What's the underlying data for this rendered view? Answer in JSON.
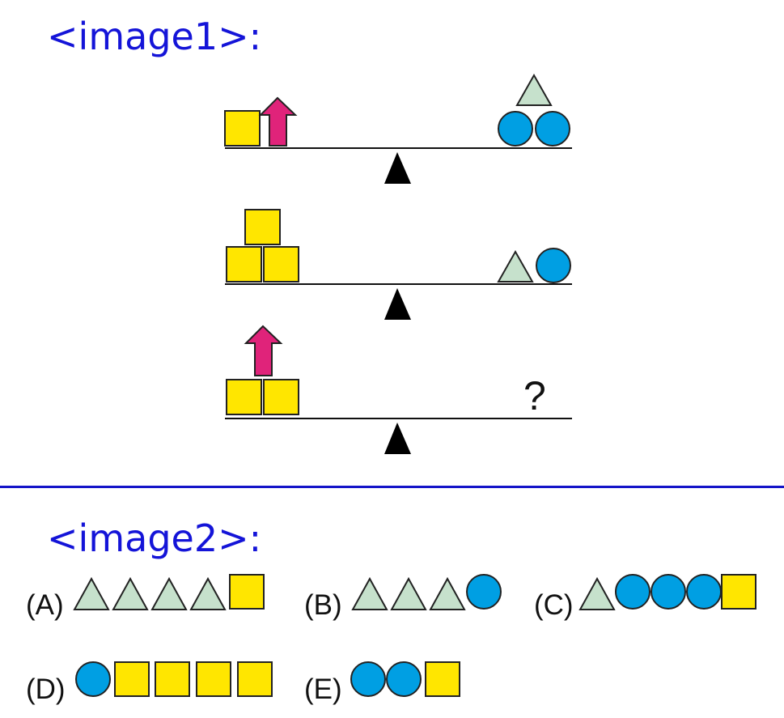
{
  "image1_label": "<image1>:",
  "image2_label": "<image2>:",
  "question_mark": "?",
  "colors": {
    "square": "#ffe600",
    "circle": "#009fe3",
    "triangle": "#c6e1cc",
    "arrow": "#e0237a",
    "label": "#1414d8"
  },
  "balances": [
    {
      "left": [
        "square",
        "arrow"
      ],
      "right": [
        "triangle",
        "circle",
        "circle"
      ]
    },
    {
      "left": [
        "square",
        "square",
        "square"
      ],
      "right": [
        "triangle",
        "circle"
      ]
    },
    {
      "left": [
        "arrow",
        "square",
        "square"
      ],
      "right": [
        "?"
      ]
    }
  ],
  "options": [
    {
      "label": "(A)",
      "shapes": [
        "triangle",
        "triangle",
        "triangle",
        "triangle",
        "square"
      ]
    },
    {
      "label": "(B)",
      "shapes": [
        "triangle",
        "triangle",
        "triangle",
        "circle"
      ]
    },
    {
      "label": "(C)",
      "shapes": [
        "triangle",
        "circle",
        "circle",
        "circle",
        "square"
      ]
    },
    {
      "label": "(D)",
      "shapes": [
        "circle",
        "square",
        "square",
        "square",
        "square"
      ]
    },
    {
      "label": "(E)",
      "shapes": [
        "circle",
        "circle",
        "square"
      ]
    }
  ]
}
